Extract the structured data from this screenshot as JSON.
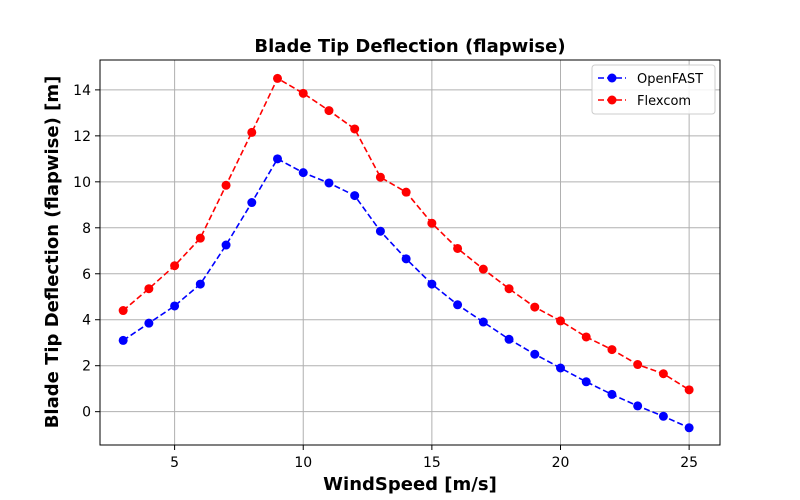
{
  "chart_data": {
    "type": "line",
    "title": "Blade Tip Deflection (flapwise)",
    "xlabel": "WindSpeed [m/s]",
    "ylabel": "Blade Tip Deflection (flapwise) [m]",
    "xlim": [
      2.1,
      26.2
    ],
    "ylim": [
      -1.45,
      15.3
    ],
    "xticks": [
      5,
      10,
      15,
      20,
      25
    ],
    "yticks": [
      0,
      2,
      4,
      6,
      8,
      10,
      12,
      14
    ],
    "grid": true,
    "legend_position": "top-right",
    "x": [
      3,
      4,
      5,
      6,
      7,
      8,
      9,
      10,
      11,
      12,
      13,
      14,
      15,
      16,
      17,
      18,
      19,
      20,
      21,
      22,
      23,
      24,
      25
    ],
    "series": [
      {
        "name": "OpenFAST",
        "color": "#0000ff",
        "style": "dashed",
        "marker": "circle",
        "values": [
          3.1,
          3.85,
          4.6,
          5.55,
          7.25,
          9.1,
          11.0,
          10.4,
          9.95,
          9.4,
          7.85,
          6.65,
          5.55,
          4.65,
          3.9,
          3.15,
          2.5,
          1.9,
          1.3,
          0.75,
          0.25,
          -0.2,
          -0.7
        ]
      },
      {
        "name": "Flexcom",
        "color": "#ff0000",
        "style": "dashed",
        "marker": "circle",
        "values": [
          4.4,
          5.35,
          6.35,
          7.55,
          9.85,
          12.15,
          14.5,
          13.85,
          13.1,
          12.3,
          10.2,
          9.55,
          8.2,
          7.1,
          6.2,
          5.35,
          4.55,
          3.95,
          3.25,
          2.7,
          2.05,
          1.65,
          0.95
        ]
      }
    ]
  }
}
